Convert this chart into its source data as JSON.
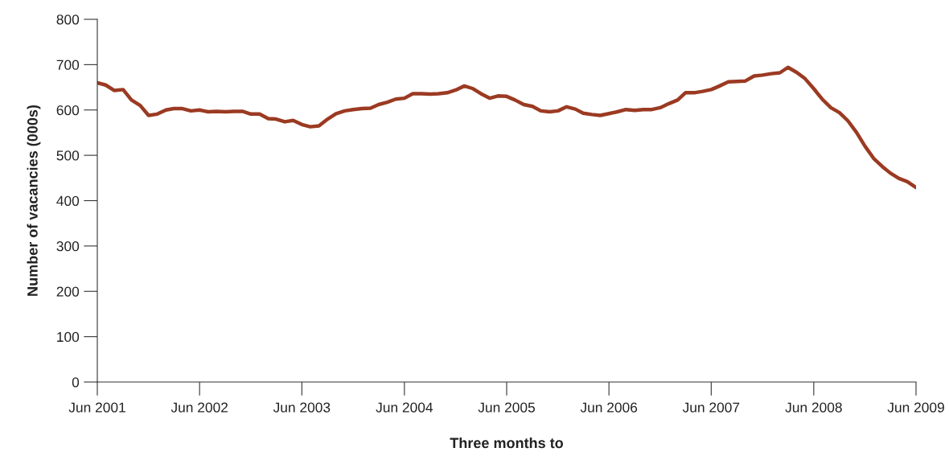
{
  "chart_data": {
    "type": "line",
    "xlabel": "Three months to",
    "ylabel": "Number of vacancies (000s)",
    "x": [
      "2001-06",
      "2001-07",
      "2001-08",
      "2001-09",
      "2001-10",
      "2001-11",
      "2001-12",
      "2002-01",
      "2002-02",
      "2002-03",
      "2002-04",
      "2002-05",
      "2002-06",
      "2002-07",
      "2002-08",
      "2002-09",
      "2002-10",
      "2002-11",
      "2002-12",
      "2003-01",
      "2003-02",
      "2003-03",
      "2003-04",
      "2003-05",
      "2003-06",
      "2003-07",
      "2003-08",
      "2003-09",
      "2003-10",
      "2003-11",
      "2003-12",
      "2004-01",
      "2004-02",
      "2004-03",
      "2004-04",
      "2004-05",
      "2004-06",
      "2004-07",
      "2004-08",
      "2004-09",
      "2004-10",
      "2004-11",
      "2004-12",
      "2005-01",
      "2005-02",
      "2005-03",
      "2005-04",
      "2005-05",
      "2005-06",
      "2005-07",
      "2005-08",
      "2005-09",
      "2005-10",
      "2005-11",
      "2005-12",
      "2006-01",
      "2006-02",
      "2006-03",
      "2006-04",
      "2006-05",
      "2006-06",
      "2006-07",
      "2006-08",
      "2006-09",
      "2006-10",
      "2006-11",
      "2006-12",
      "2007-01",
      "2007-02",
      "2007-03",
      "2007-04",
      "2007-05",
      "2007-06",
      "2007-07",
      "2007-08",
      "2007-09",
      "2007-10",
      "2007-11",
      "2007-12",
      "2008-01",
      "2008-02",
      "2008-03",
      "2008-04",
      "2008-05",
      "2008-06",
      "2008-07",
      "2008-08",
      "2008-09",
      "2008-10",
      "2008-11",
      "2008-12",
      "2009-01",
      "2009-02",
      "2009-03",
      "2009-04",
      "2009-05",
      "2009-06"
    ],
    "series": [
      {
        "color": "#9b3a22",
        "values": [
          660,
          655,
          643,
          645,
          622,
          610,
          588,
          591,
          600,
          603,
          603,
          598,
          600,
          596,
          597,
          596,
          597,
          597,
          591,
          591,
          581,
          580,
          574,
          577,
          568,
          563,
          565,
          580,
          592,
          598,
          601,
          603,
          604,
          612,
          617,
          624,
          626,
          636,
          636,
          635,
          636,
          638,
          644,
          653,
          647,
          636,
          626,
          631,
          630,
          622,
          612,
          608,
          598,
          596,
          598,
          607,
          602,
          593,
          590,
          588,
          592,
          596,
          601,
          599,
          601,
          601,
          605,
          614,
          622,
          638,
          638,
          641,
          645,
          653,
          662,
          663,
          664,
          675,
          677,
          680,
          682,
          694,
          683,
          669,
          647,
          624,
          605,
          594,
          576,
          550,
          520,
          493,
          475,
          461,
          449,
          442,
          429
        ]
      }
    ],
    "ylim": [
      0,
      800
    ],
    "yticks": [
      0,
      100,
      200,
      300,
      400,
      500,
      600,
      700,
      800
    ],
    "xlim": [
      "2001-06",
      "2009-06"
    ],
    "xticks": [
      {
        "value": "2001-06",
        "label": "Jun 2001"
      },
      {
        "value": "2002-06",
        "label": "Jun 2002"
      },
      {
        "value": "2003-06",
        "label": "Jun 2003"
      },
      {
        "value": "2004-06",
        "label": "Jun 2004"
      },
      {
        "value": "2005-06",
        "label": "Jun 2005"
      },
      {
        "value": "2006-06",
        "label": "Jun 2006"
      },
      {
        "value": "2007-06",
        "label": "Jun 2007"
      },
      {
        "value": "2008-06",
        "label": "Jun 2008"
      },
      {
        "value": "2009-06",
        "label": "Jun 2009"
      }
    ],
    "grid": false,
    "marker": "none",
    "line_style": "solid"
  }
}
